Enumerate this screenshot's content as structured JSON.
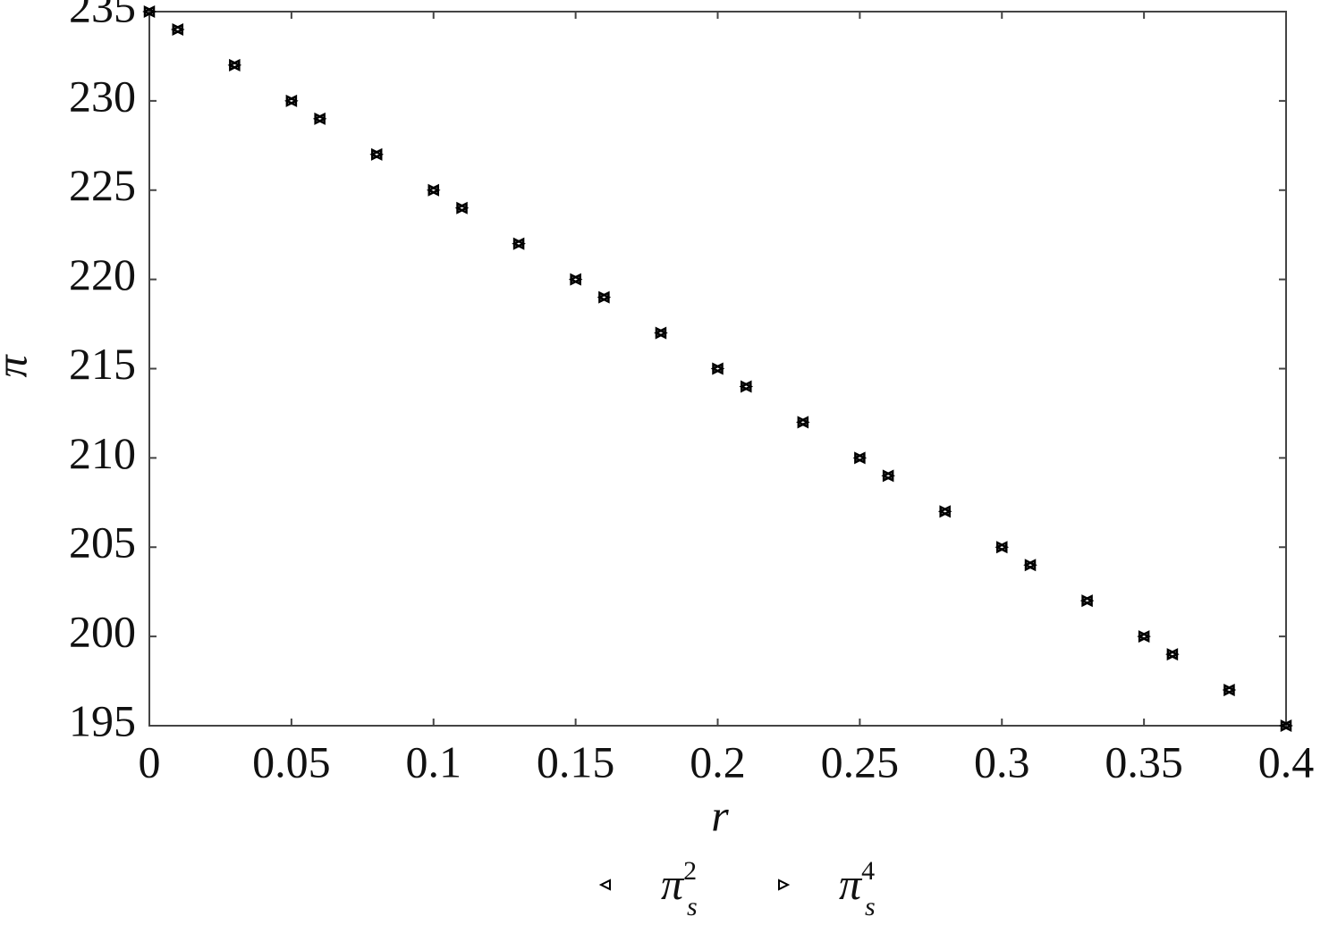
{
  "chart_data": {
    "type": "scatter",
    "x_label": "r",
    "y_label": "π",
    "x": [
      0,
      0.01,
      0.03,
      0.05,
      0.06,
      0.08,
      0.1,
      0.11,
      0.13,
      0.15,
      0.16,
      0.18,
      0.2,
      0.21,
      0.23,
      0.25,
      0.26,
      0.28,
      0.3,
      0.31,
      0.33,
      0.35,
      0.36,
      0.38,
      0.4
    ],
    "series": [
      {
        "name": "π_s^2",
        "color": "#000000",
        "marker": "triangle-left",
        "values": [
          235,
          234,
          232,
          230,
          229,
          227,
          225,
          224,
          222,
          220,
          219,
          217,
          215,
          214,
          212,
          210,
          209,
          207,
          205,
          204,
          202,
          200,
          199,
          197,
          195
        ]
      },
      {
        "name": "π_s^4",
        "color": "#000000",
        "marker": "triangle-right",
        "values": [
          235,
          234,
          232,
          230,
          229,
          227,
          225,
          224,
          222,
          220,
          219,
          217,
          215,
          214,
          212,
          210,
          209,
          207,
          205,
          204,
          202,
          200,
          199,
          197,
          195
        ]
      }
    ],
    "xlim": [
      0,
      0.4
    ],
    "xticks": [
      0,
      0.05,
      0.1,
      0.15,
      0.2,
      0.25,
      0.3,
      0.35,
      0.4
    ],
    "ylim": [
      195,
      235
    ],
    "yticks": [
      195,
      200,
      205,
      210,
      215,
      220,
      225,
      230,
      235
    ],
    "grid": false,
    "legend": "bottom"
  }
}
